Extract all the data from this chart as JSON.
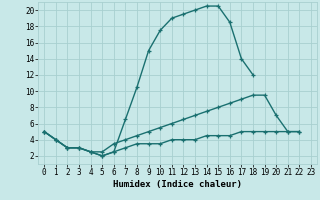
{
  "xlabel": "Humidex (Indice chaleur)",
  "bg_color": "#c8e8e8",
  "line_color": "#1a7070",
  "grid_color": "#a8d0d0",
  "xlim": [
    -0.5,
    23.5
  ],
  "ylim": [
    1,
    21
  ],
  "xticks": [
    0,
    1,
    2,
    3,
    4,
    5,
    6,
    7,
    8,
    9,
    10,
    11,
    12,
    13,
    14,
    15,
    16,
    17,
    18,
    19,
    20,
    21,
    22,
    23
  ],
  "yticks": [
    2,
    4,
    6,
    8,
    10,
    12,
    14,
    16,
    18,
    20
  ],
  "line1_x": [
    0,
    1,
    2,
    3,
    4,
    5,
    6,
    7,
    8,
    9,
    10,
    11,
    12,
    13,
    14,
    15,
    16,
    17,
    18
  ],
  "line1_y": [
    5,
    4,
    3,
    3,
    2.5,
    2,
    2.5,
    6.5,
    10.5,
    15,
    17.5,
    19,
    19.5,
    20,
    20.5,
    20.5,
    18.5,
    14,
    12
  ],
  "line2_x": [
    0,
    1,
    2,
    3,
    4,
    5,
    6,
    7,
    8,
    9,
    10,
    11,
    12,
    13,
    14,
    15,
    16,
    17,
    18,
    19,
    20,
    21,
    22
  ],
  "line2_y": [
    5,
    4,
    3,
    3,
    2.5,
    2.5,
    3.5,
    4,
    4.5,
    5,
    5.5,
    6,
    6.5,
    7,
    7.5,
    8,
    8.5,
    9,
    9.5,
    9.5,
    7,
    5,
    5
  ],
  "line3_x": [
    0,
    1,
    2,
    3,
    4,
    5,
    6,
    7,
    8,
    9,
    10,
    11,
    12,
    13,
    14,
    15,
    16,
    17,
    18,
    19,
    20,
    21,
    22
  ],
  "line3_y": [
    5,
    4,
    3,
    3,
    2.5,
    2,
    2.5,
    3,
    3.5,
    3.5,
    3.5,
    4,
    4,
    4,
    4.5,
    4.5,
    4.5,
    5,
    5,
    5,
    5,
    5,
    5
  ]
}
